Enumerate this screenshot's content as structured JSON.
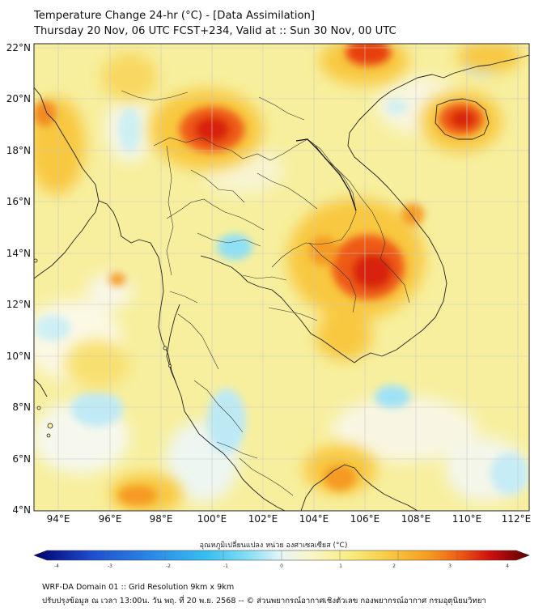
{
  "header": {
    "title_line1": "Temperature Change 24-hr (°C) - [Data Assimilation]",
    "title_line2": "Thursday 20 Nov, 06 UTC FCST+234, Valid at :: Sun 30 Nov, 00 UTC"
  },
  "map": {
    "lat_labels": [
      "22°N",
      "20°N",
      "18°N",
      "16°N",
      "14°N",
      "12°N",
      "10°N",
      "8°N",
      "6°N",
      "4°N"
    ],
    "lon_labels": [
      "94°E",
      "96°E",
      "98°E",
      "100°E",
      "102°E",
      "104°E",
      "106°E",
      "108°E",
      "110°E",
      "112°E"
    ],
    "background_color": "#f7ef9e",
    "hotspots": [
      {
        "name": "northern-thailand",
        "value": 2.9
      },
      {
        "name": "cambodia-east",
        "value": 2.9
      },
      {
        "name": "hainan",
        "value": 3.0
      },
      {
        "name": "south-china",
        "value": 3.0
      },
      {
        "name": "myanmar-west",
        "value": 2.5
      },
      {
        "name": "bangkok-cool-patch",
        "value": -0.8
      },
      {
        "name": "andaman-cool",
        "value": -0.7
      },
      {
        "name": "gulf-cool",
        "value": -0.6
      }
    ]
  },
  "colorbar": {
    "title": "อุณหภูมิเปลี่ยนแปลง หน่วย องศาเซลเซียส (°C)",
    "min": -4,
    "max": 4,
    "ticks": [
      "-4",
      "-3",
      "-2",
      "-1",
      "0",
      "1",
      "2",
      "3",
      "4"
    ],
    "colors": [
      "#00006e",
      "#0a1aa0",
      "#1e4fd0",
      "#2c8fe8",
      "#38c0f0",
      "#8fe0f5",
      "#e6f7f5",
      "#fbf5c8",
      "#f8ec80",
      "#f8c840",
      "#f59a20",
      "#ee5a14",
      "#d01010",
      "#900000",
      "#5a0000"
    ]
  },
  "footer": {
    "line1": "WRF-DA Domain 01 :: Grid Resolution 9km x 9km",
    "line2": "ปรับปรุงข้อมูล ณ เวลา 13:00น. วัน พฤ. ที่ 20 พ.ย. 2568 -- © ส่วนพยากรณ์อากาศเชิงตัวเลข กองพยากรณ์อากาศ กรมอุตุนิยมวิทยา"
  }
}
